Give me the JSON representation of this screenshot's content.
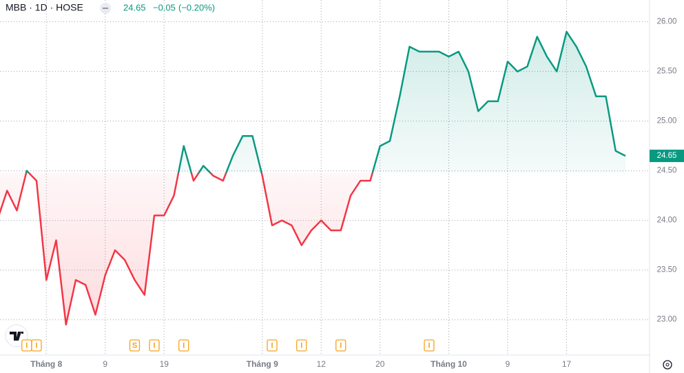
{
  "chart_data": {
    "type": "baseline-line",
    "title": "MBB · 1D · HOSE",
    "last_price": "24.65",
    "change": "−0.05",
    "change_percent": "(−0.20%)",
    "current_value_label": "24.65",
    "baseline": 24.48,
    "up_color": "#089981",
    "down_color": "#f23645",
    "grid": true,
    "categories": [
      null,
      null,
      null,
      null,
      null,
      "Tháng 8",
      null,
      null,
      null,
      null,
      null,
      "9",
      null,
      null,
      null,
      null,
      null,
      "19",
      null,
      null,
      null,
      null,
      null,
      null,
      null,
      null,
      null,
      "Tháng 9",
      null,
      null,
      null,
      null,
      null,
      "12",
      null,
      null,
      null,
      null,
      null,
      "20",
      null,
      null,
      null,
      null,
      null,
      null,
      "Tháng 10",
      null,
      null,
      null,
      null,
      null,
      "9",
      null,
      null,
      null,
      null,
      null,
      "17",
      null,
      null,
      null,
      null,
      null,
      null
    ],
    "values": [
      24.0,
      24.3,
      24.1,
      24.5,
      24.4,
      23.4,
      23.8,
      22.95,
      23.4,
      23.35,
      23.05,
      23.45,
      23.7,
      23.6,
      23.4,
      23.25,
      24.05,
      24.05,
      24.25,
      24.75,
      24.4,
      24.55,
      24.45,
      24.4,
      24.65,
      24.85,
      24.85,
      24.45,
      23.95,
      24.0,
      23.95,
      23.75,
      23.9,
      24.0,
      23.9,
      23.9,
      24.25,
      24.4,
      24.4,
      24.75,
      24.8,
      25.25,
      25.75,
      25.7,
      25.7,
      25.7,
      25.65,
      25.7,
      25.5,
      25.1,
      25.2,
      25.2,
      25.6,
      25.5,
      25.55,
      25.85,
      25.65,
      25.5,
      25.9,
      25.75,
      25.55,
      25.25,
      25.25,
      24.7,
      24.65
    ],
    "ylim": [
      22.55,
      26.22
    ],
    "yticks": [
      {
        "value": 23,
        "label": "23.00"
      },
      {
        "value": 23.5,
        "label": "23.50"
      },
      {
        "value": 24,
        "label": "24.00"
      },
      {
        "value": 24.5,
        "label": "24.50"
      },
      {
        "value": 25,
        "label": "25.00"
      },
      {
        "value": 25.5,
        "label": "25.50"
      },
      {
        "value": 26,
        "label": "26.00"
      }
    ],
    "events": [
      {
        "index": 3,
        "label": "I"
      },
      {
        "index": 4,
        "label": "I"
      },
      {
        "index": 14,
        "label": "S"
      },
      {
        "index": 16,
        "label": "I"
      },
      {
        "index": 19,
        "label": "I"
      },
      {
        "index": 28,
        "label": "I"
      },
      {
        "index": 31,
        "label": "I"
      },
      {
        "index": 35,
        "label": "I"
      },
      {
        "index": 44,
        "label": "I"
      }
    ]
  }
}
